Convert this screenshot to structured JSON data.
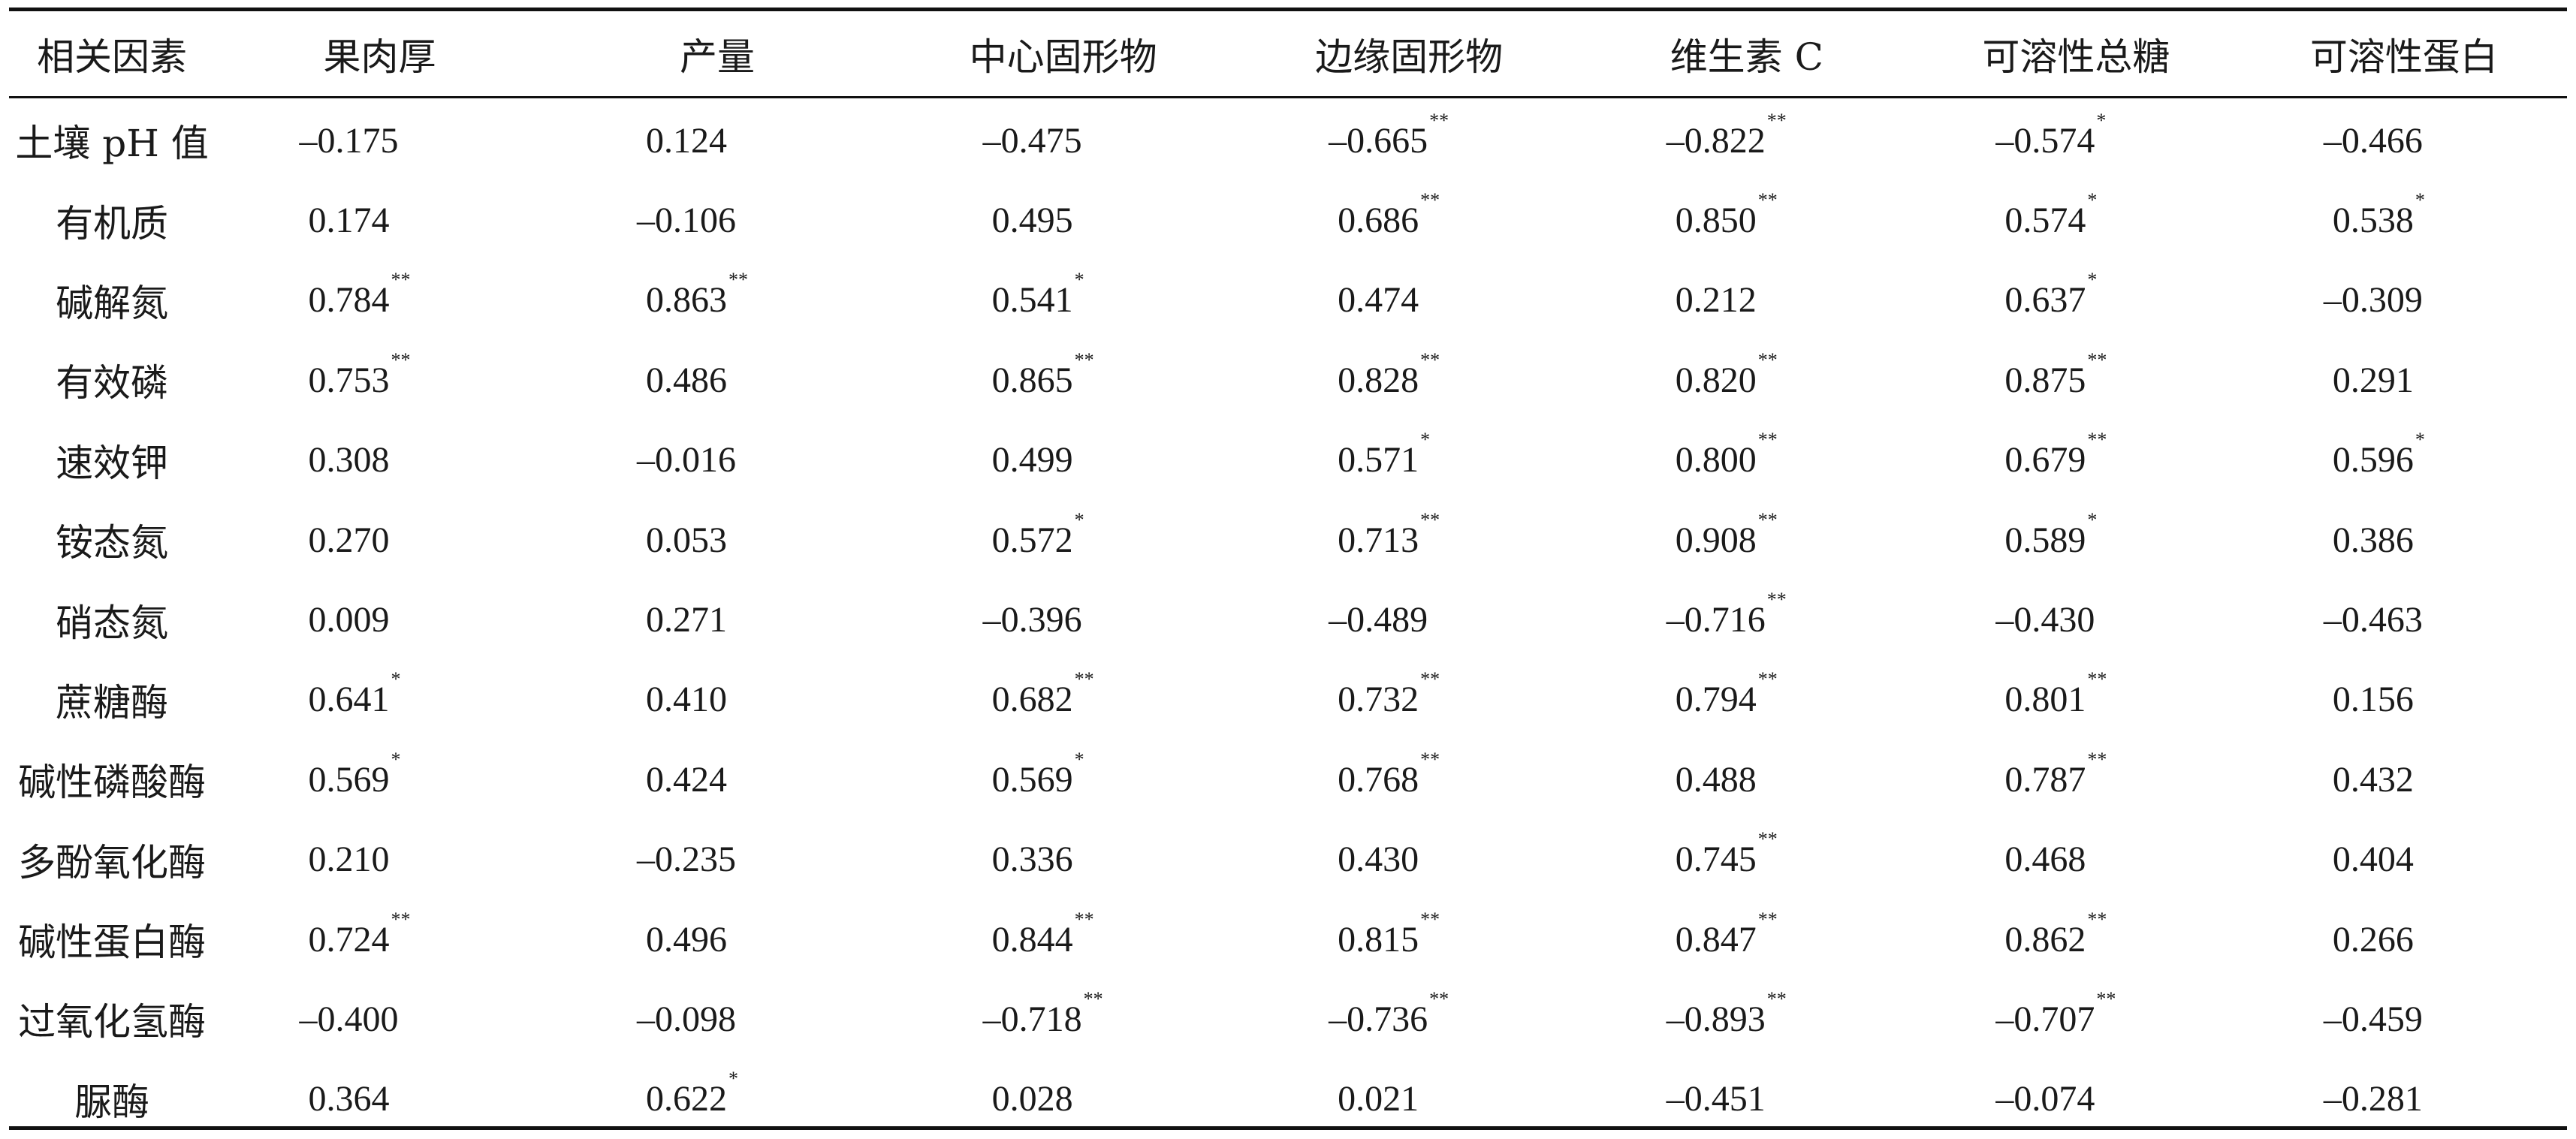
{
  "table": {
    "headers": [
      "相关因素",
      "果肉厚",
      "产量",
      "中心固形物",
      "边缘固形物",
      "维生素 C",
      "可溶性总糖",
      "可溶性蛋白"
    ],
    "rows": [
      {
        "factor": "土壤 pH 值",
        "cells": [
          {
            "v": "–0.175",
            "s": ""
          },
          {
            "v": "0.124",
            "s": ""
          },
          {
            "v": "–0.475",
            "s": ""
          },
          {
            "v": "–0.665",
            "s": "**"
          },
          {
            "v": "–0.822",
            "s": "**"
          },
          {
            "v": "–0.574",
            "s": "*"
          },
          {
            "v": "–0.466",
            "s": ""
          }
        ]
      },
      {
        "factor": "有机质",
        "cells": [
          {
            "v": "0.174",
            "s": ""
          },
          {
            "v": "–0.106",
            "s": ""
          },
          {
            "v": "0.495",
            "s": ""
          },
          {
            "v": "0.686",
            "s": "**"
          },
          {
            "v": "0.850",
            "s": "**"
          },
          {
            "v": "0.574",
            "s": "*"
          },
          {
            "v": "0.538",
            "s": "*"
          }
        ]
      },
      {
        "factor": "碱解氮",
        "cells": [
          {
            "v": "0.784",
            "s": "**"
          },
          {
            "v": "0.863",
            "s": "**"
          },
          {
            "v": "0.541",
            "s": "*"
          },
          {
            "v": "0.474",
            "s": ""
          },
          {
            "v": "0.212",
            "s": ""
          },
          {
            "v": "0.637",
            "s": "*"
          },
          {
            "v": "–0.309",
            "s": ""
          }
        ]
      },
      {
        "factor": "有效磷",
        "cells": [
          {
            "v": "0.753",
            "s": "**"
          },
          {
            "v": "0.486",
            "s": ""
          },
          {
            "v": "0.865",
            "s": "**"
          },
          {
            "v": "0.828",
            "s": "**"
          },
          {
            "v": "0.820",
            "s": "**"
          },
          {
            "v": "0.875",
            "s": "**"
          },
          {
            "v": "0.291",
            "s": ""
          }
        ]
      },
      {
        "factor": "速效钾",
        "cells": [
          {
            "v": "0.308",
            "s": ""
          },
          {
            "v": "–0.016",
            "s": ""
          },
          {
            "v": "0.499",
            "s": ""
          },
          {
            "v": "0.571",
            "s": "*"
          },
          {
            "v": "0.800",
            "s": "**"
          },
          {
            "v": "0.679",
            "s": "**"
          },
          {
            "v": "0.596",
            "s": "*"
          }
        ]
      },
      {
        "factor": "铵态氮",
        "cells": [
          {
            "v": "0.270",
            "s": ""
          },
          {
            "v": "0.053",
            "s": ""
          },
          {
            "v": "0.572",
            "s": "*"
          },
          {
            "v": "0.713",
            "s": "**"
          },
          {
            "v": "0.908",
            "s": "**"
          },
          {
            "v": "0.589",
            "s": "*"
          },
          {
            "v": "0.386",
            "s": ""
          }
        ]
      },
      {
        "factor": "硝态氮",
        "cells": [
          {
            "v": "0.009",
            "s": ""
          },
          {
            "v": "0.271",
            "s": ""
          },
          {
            "v": "–0.396",
            "s": ""
          },
          {
            "v": "–0.489",
            "s": ""
          },
          {
            "v": "–0.716",
            "s": "**"
          },
          {
            "v": "–0.430",
            "s": ""
          },
          {
            "v": "–0.463",
            "s": ""
          }
        ]
      },
      {
        "factor": "蔗糖酶",
        "cells": [
          {
            "v": "0.641",
            "s": "*"
          },
          {
            "v": "0.410",
            "s": ""
          },
          {
            "v": "0.682",
            "s": "**"
          },
          {
            "v": "0.732",
            "s": "**"
          },
          {
            "v": "0.794",
            "s": "**"
          },
          {
            "v": "0.801",
            "s": "**"
          },
          {
            "v": "0.156",
            "s": ""
          }
        ]
      },
      {
        "factor": "碱性磷酸酶",
        "cells": [
          {
            "v": "0.569",
            "s": "*"
          },
          {
            "v": "0.424",
            "s": ""
          },
          {
            "v": "0.569",
            "s": "*"
          },
          {
            "v": "0.768",
            "s": "**"
          },
          {
            "v": "0.488",
            "s": ""
          },
          {
            "v": "0.787",
            "s": "**"
          },
          {
            "v": "0.432",
            "s": ""
          }
        ]
      },
      {
        "factor": "多酚氧化酶",
        "cells": [
          {
            "v": "0.210",
            "s": ""
          },
          {
            "v": "–0.235",
            "s": ""
          },
          {
            "v": "0.336",
            "s": ""
          },
          {
            "v": "0.430",
            "s": ""
          },
          {
            "v": "0.745",
            "s": "**"
          },
          {
            "v": "0.468",
            "s": ""
          },
          {
            "v": "0.404",
            "s": ""
          }
        ]
      },
      {
        "factor": "碱性蛋白酶",
        "cells": [
          {
            "v": "0.724",
            "s": "**"
          },
          {
            "v": "0.496",
            "s": ""
          },
          {
            "v": "0.844",
            "s": "**"
          },
          {
            "v": "0.815",
            "s": "**"
          },
          {
            "v": "0.847",
            "s": "**"
          },
          {
            "v": "0.862",
            "s": "**"
          },
          {
            "v": "0.266",
            "s": ""
          }
        ]
      },
      {
        "factor": "过氧化氢酶",
        "cells": [
          {
            "v": "–0.400",
            "s": ""
          },
          {
            "v": "–0.098",
            "s": ""
          },
          {
            "v": "–0.718",
            "s": "**"
          },
          {
            "v": "–0.736",
            "s": "**"
          },
          {
            "v": "–0.893",
            "s": "**"
          },
          {
            "v": "–0.707",
            "s": "**"
          },
          {
            "v": "–0.459",
            "s": ""
          }
        ]
      },
      {
        "factor": "脲酶",
        "cells": [
          {
            "v": "0.364",
            "s": ""
          },
          {
            "v": "0.622",
            "s": "*"
          },
          {
            "v": "0.028",
            "s": ""
          },
          {
            "v": "0.021",
            "s": ""
          },
          {
            "v": "–0.451",
            "s": ""
          },
          {
            "v": "–0.074",
            "s": ""
          },
          {
            "v": "–0.281",
            "s": ""
          }
        ]
      }
    ]
  }
}
